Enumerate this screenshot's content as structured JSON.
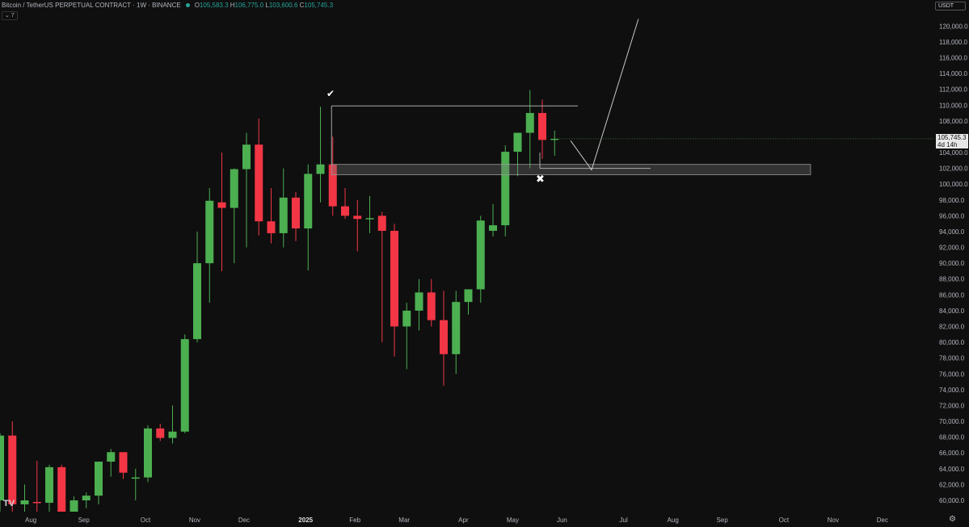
{
  "header": {
    "symbol": "Bitcoin / TetherUS PERPETUAL CONTRACT · 1W · BINANCE",
    "open_label": "O",
    "open": "105,583.3",
    "high_label": "H",
    "high": "106,775.0",
    "low_label": "L",
    "low": "103,600.6",
    "close_label": "C",
    "close": "105,745.3"
  },
  "indicator_toggle": "⌄ 7",
  "currency_button": "USDT",
  "last_price": {
    "value": "105,745.3",
    "countdown": "4d 14h"
  },
  "logo": "TV",
  "settings_icon": "settings-icon",
  "colors": {
    "up": "#4caf50",
    "down": "#f23645",
    "background": "#0f0f0f"
  },
  "chart_data": {
    "type": "candlestick",
    "ylim": [
      59000,
      122000
    ],
    "y_ticks": [
      60000,
      62000,
      64000,
      66000,
      68000,
      70000,
      72000,
      74000,
      76000,
      78000,
      80000,
      82000,
      84000,
      86000,
      88000,
      90000,
      92000,
      94000,
      96000,
      98000,
      100000,
      102000,
      104000,
      106000,
      108000,
      110000,
      112000,
      114000,
      116000,
      118000,
      120000
    ],
    "y_tick_labels": [
      "60,000.0",
      "62,000.0",
      "64,000.0",
      "66,000.0",
      "68,000.0",
      "70,000.0",
      "72,000.0",
      "74,000.0",
      "76,000.0",
      "78,000.0",
      "80,000.0",
      "82,000.0",
      "84,000.0",
      "86,000.0",
      "88,000.0",
      "90,000.0",
      "92,000.0",
      "94,000.0",
      "96,000.0",
      "98,000.0",
      "100,000.0",
      "102,000.0",
      "104,000.0",
      "106,000.0",
      "108,000.0",
      "110,000.0",
      "112,000.0",
      "114,000.0",
      "116,000.0",
      "118,000.0",
      "120,000.0"
    ],
    "x_ticks": [
      {
        "label": "Aug",
        "week": 2.5
      },
      {
        "label": "Sep",
        "week": 6.8
      },
      {
        "label": "Oct",
        "week": 11.8
      },
      {
        "label": "Nov",
        "week": 15.8
      },
      {
        "label": "Dec",
        "week": 19.8
      },
      {
        "label": "2025",
        "week": 24.8,
        "bold": true
      },
      {
        "label": "Feb",
        "week": 28.8
      },
      {
        "label": "Mar",
        "week": 32.8
      },
      {
        "label": "Apr",
        "week": 37.6
      },
      {
        "label": "May",
        "week": 41.6
      },
      {
        "label": "Jun",
        "week": 45.6
      },
      {
        "label": "Jul",
        "week": 50.6
      },
      {
        "label": "Aug",
        "week": 54.6
      },
      {
        "label": "Sep",
        "week": 58.6
      },
      {
        "label": "Oct",
        "week": 63.6
      },
      {
        "label": "Nov",
        "week": 67.6
      },
      {
        "label": "Dec",
        "week": 71.6
      }
    ],
    "candles": [
      {
        "o": 60000,
        "h": 68500,
        "l": 56000,
        "c": 68200
      },
      {
        "o": 68200,
        "h": 70000,
        "l": 57000,
        "c": 59500
      },
      {
        "o": 59500,
        "h": 62000,
        "l": 57500,
        "c": 60000
      },
      {
        "o": 59800,
        "h": 65000,
        "l": 57000,
        "c": 59700
      },
      {
        "o": 59700,
        "h": 64500,
        "l": 58000,
        "c": 64200
      },
      {
        "o": 64200,
        "h": 64500,
        "l": 56000,
        "c": 58300
      },
      {
        "o": 58300,
        "h": 60500,
        "l": 57500,
        "c": 60000
      },
      {
        "o": 60000,
        "h": 61000,
        "l": 59000,
        "c": 60600
      },
      {
        "o": 60600,
        "h": 64800,
        "l": 59500,
        "c": 64900
      },
      {
        "o": 64900,
        "h": 66500,
        "l": 63000,
        "c": 66100
      },
      {
        "o": 66100,
        "h": 66000,
        "l": 62700,
        "c": 63500
      },
      {
        "o": 62900,
        "h": 64000,
        "l": 60000,
        "c": 62900
      },
      {
        "o": 62900,
        "h": 69500,
        "l": 62300,
        "c": 69100
      },
      {
        "o": 69100,
        "h": 69700,
        "l": 67500,
        "c": 67900
      },
      {
        "o": 67900,
        "h": 72000,
        "l": 67200,
        "c": 68700
      },
      {
        "o": 68700,
        "h": 81000,
        "l": 68500,
        "c": 80400
      },
      {
        "o": 80400,
        "h": 94000,
        "l": 80000,
        "c": 90000
      },
      {
        "o": 90000,
        "h": 99500,
        "l": 85000,
        "c": 97900
      },
      {
        "o": 97700,
        "h": 104000,
        "l": 89000,
        "c": 97000
      },
      {
        "o": 97000,
        "h": 102000,
        "l": 90000,
        "c": 101900
      },
      {
        "o": 101900,
        "h": 106500,
        "l": 92000,
        "c": 105000
      },
      {
        "o": 105000,
        "h": 108300,
        "l": 93500,
        "c": 95300
      },
      {
        "o": 95300,
        "h": 99500,
        "l": 92500,
        "c": 93800
      },
      {
        "o": 93800,
        "h": 102000,
        "l": 92000,
        "c": 98300
      },
      {
        "o": 98300,
        "h": 99000,
        "l": 92800,
        "c": 94400
      },
      {
        "o": 94400,
        "h": 102500,
        "l": 89100,
        "c": 101300
      },
      {
        "o": 101300,
        "h": 109800,
        "l": 97700,
        "c": 102500
      },
      {
        "o": 102500,
        "h": 106000,
        "l": 96000,
        "c": 97200
      },
      {
        "o": 97200,
        "h": 99500,
        "l": 95600,
        "c": 96000
      },
      {
        "o": 96000,
        "h": 98000,
        "l": 91500,
        "c": 95600
      },
      {
        "o": 95600,
        "h": 98500,
        "l": 93800,
        "c": 95700
      },
      {
        "o": 96000,
        "h": 96500,
        "l": 80000,
        "c": 94100
      },
      {
        "o": 94100,
        "h": 95000,
        "l": 78200,
        "c": 82000
      },
      {
        "o": 82000,
        "h": 85000,
        "l": 76600,
        "c": 84000
      },
      {
        "o": 84000,
        "h": 88000,
        "l": 81500,
        "c": 86300
      },
      {
        "o": 86300,
        "h": 88000,
        "l": 82000,
        "c": 82800
      },
      {
        "o": 82800,
        "h": 86500,
        "l": 74500,
        "c": 78500
      },
      {
        "o": 78500,
        "h": 86500,
        "l": 76000,
        "c": 85100
      },
      {
        "o": 85100,
        "h": 86500,
        "l": 83500,
        "c": 86700
      },
      {
        "o": 86700,
        "h": 96000,
        "l": 85000,
        "c": 95400
      },
      {
        "o": 94100,
        "h": 97500,
        "l": 93400,
        "c": 94800
      },
      {
        "o": 94800,
        "h": 104900,
        "l": 93400,
        "c": 104100
      },
      {
        "o": 104100,
        "h": 106000,
        "l": 101000,
        "c": 106500
      },
      {
        "o": 106500,
        "h": 111900,
        "l": 102000,
        "c": 109000
      },
      {
        "o": 109000,
        "h": 110700,
        "l": 103200,
        "c": 105600
      },
      {
        "o": 105600,
        "h": 106775,
        "l": 103600,
        "c": 105745
      }
    ],
    "annotations": {
      "check_mark": "✔",
      "cross_mark": "✖",
      "resistance_level": 109900,
      "support_zone": [
        101200,
        102500
      ],
      "projection_path": [
        {
          "week": 46.3,
          "price": 105500
        },
        {
          "week": 48.0,
          "price": 101800
        },
        {
          "week": 51.8,
          "price": 120900
        }
      ]
    }
  }
}
